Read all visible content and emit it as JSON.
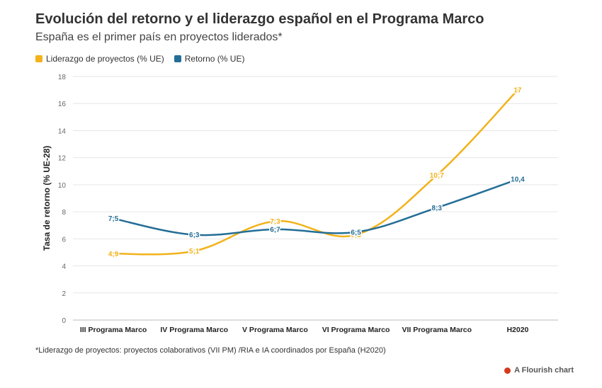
{
  "title": "Evolución del retorno y el liderazgo español en el Programa Marco",
  "subtitle": "España es el primer país en proyectos liderados*",
  "footnote": "*Liderazgo de proyectos: proyectos colaborativos (VII PM) /RIA e IA coordinados por España (H2020)",
  "credit": "A Flourish chart",
  "colors": {
    "leadership": "#F2B21A",
    "return": "#246E96",
    "grid": "#e6e6e6",
    "axis_text": "#666666"
  },
  "chart_data": {
    "type": "line",
    "categories": [
      "III Programa Marco",
      "IV Programa Marco",
      "V Programa Marco",
      "VI Programa Marco",
      "VII Programa Marco",
      "H2020"
    ],
    "series": [
      {
        "name": "Liderazgo de proyectos (% UE)",
        "values": [
          4.9,
          5.1,
          7.3,
          6.3,
          10.7,
          17
        ],
        "labels": [
          "4;9",
          "5;1",
          "7;3",
          "6;3",
          "10;7",
          "17"
        ]
      },
      {
        "name": "Retorno (% UE)",
        "values": [
          7.5,
          6.3,
          6.7,
          6.5,
          8.3,
          10.4
        ],
        "labels": [
          "7;5",
          "6;3",
          "6;7",
          "6;5",
          "8;3",
          "10,4"
        ]
      }
    ],
    "ylabel": "Tasa de retorno (% UE-28)",
    "xlabel": "",
    "ylim": [
      0,
      18
    ],
    "yticks": [
      0,
      2,
      4,
      6,
      8,
      10,
      12,
      14,
      16,
      18
    ],
    "legend_position": "top-left"
  }
}
